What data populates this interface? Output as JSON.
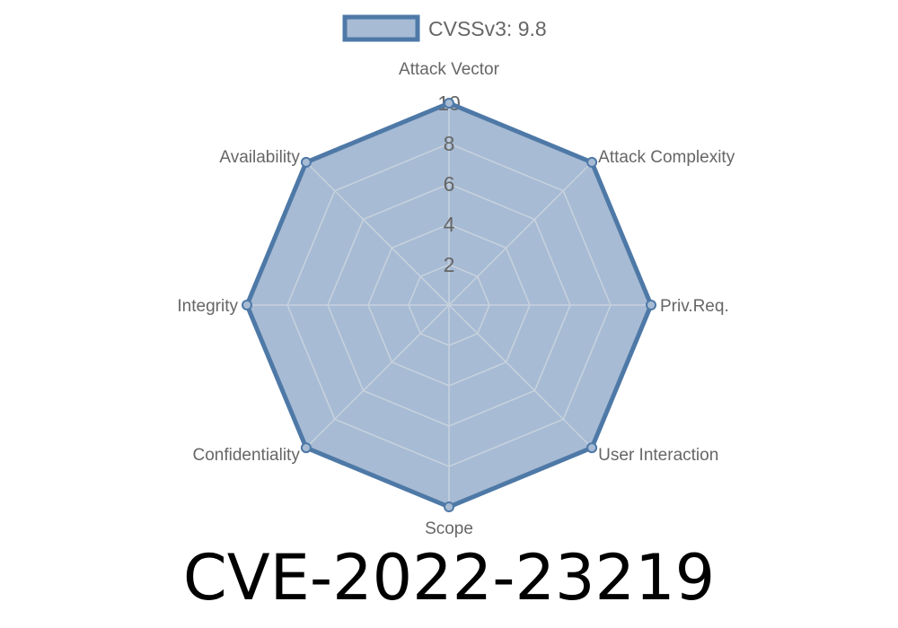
{
  "chart_data": {
    "type": "radar",
    "title": "CVE-2022-23219",
    "axes": [
      "Attack Vector",
      "Attack Complexity",
      "Priv.Req.",
      "User Interaction",
      "Scope",
      "Confidentiality",
      "Integrity",
      "Availability"
    ],
    "series": [
      {
        "name": "CVSSv3: 9.8",
        "values": [
          10,
          10,
          10,
          10,
          10,
          10,
          10,
          10
        ]
      }
    ],
    "rlim": [
      0,
      10
    ],
    "ticks": [
      "2",
      "4",
      "6",
      "8",
      "10"
    ],
    "grid": true,
    "legend": "top-center",
    "colors": {
      "stroke": "#4e79a7",
      "fill": "#a7bbd4",
      "grid": "#c8d2de",
      "text": "#666666"
    }
  }
}
